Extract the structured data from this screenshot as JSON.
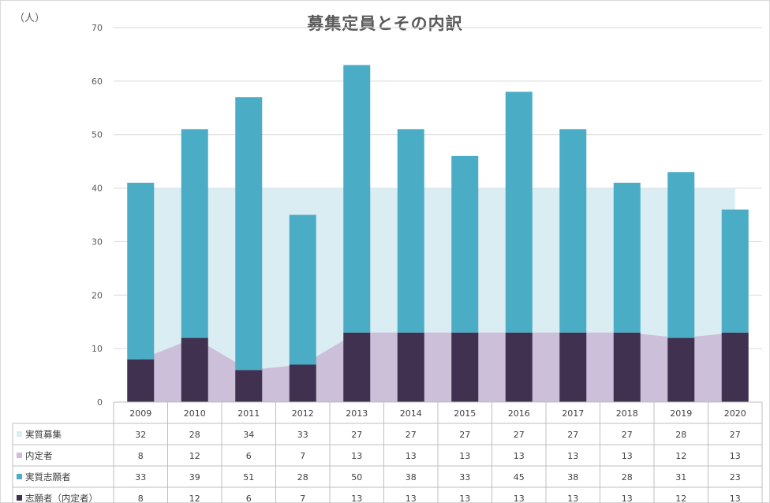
{
  "chart_data": {
    "type": "bar",
    "title": "募集定員とその内訳",
    "ylabel": "（人）",
    "ylim": [
      0,
      70
    ],
    "yticks": [
      0,
      10,
      20,
      30,
      40,
      50,
      60,
      70
    ],
    "grid": true,
    "categories": [
      "2009",
      "2010",
      "2011",
      "2012",
      "2013",
      "2014",
      "2015",
      "2016",
      "2017",
      "2018",
      "2019",
      "2020"
    ],
    "series": [
      {
        "name": "実質募集",
        "kind": "stacked-area",
        "color": "#daedf2",
        "values": [
          32,
          28,
          34,
          33,
          27,
          27,
          27,
          27,
          27,
          27,
          28,
          27
        ]
      },
      {
        "name": "内定者",
        "kind": "area",
        "color": "#cbbfd9",
        "values": [
          8,
          12,
          6,
          7,
          13,
          13,
          13,
          13,
          13,
          13,
          12,
          13
        ]
      },
      {
        "name": "実質志願者",
        "kind": "stacked-bar",
        "color": "#4bacc6",
        "values": [
          33,
          39,
          51,
          28,
          50,
          38,
          33,
          45,
          38,
          28,
          31,
          23
        ]
      },
      {
        "name": "志願者（内定者）",
        "kind": "bar",
        "color": "#403151",
        "values": [
          8,
          12,
          6,
          7,
          13,
          13,
          13,
          13,
          13,
          13,
          12,
          13
        ]
      }
    ]
  }
}
